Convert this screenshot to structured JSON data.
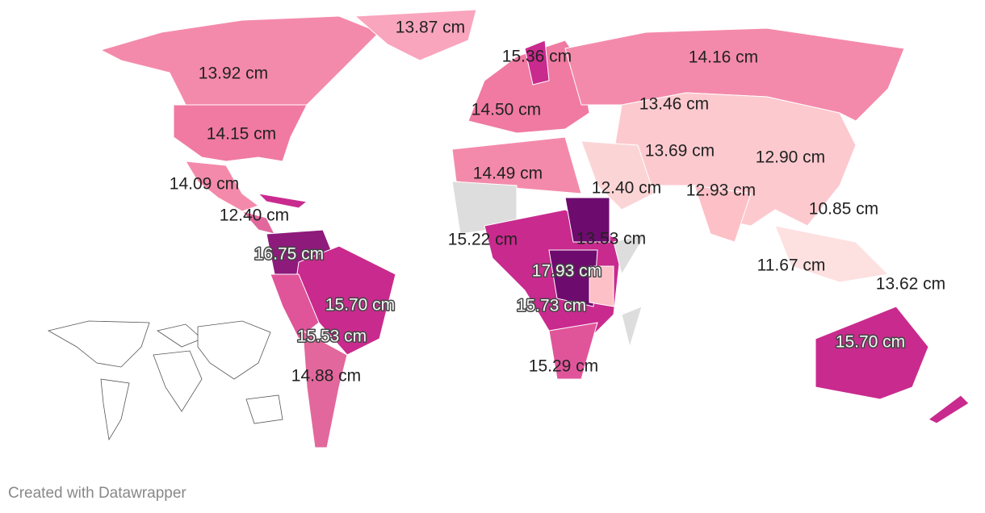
{
  "map": {
    "labels": [
      "13.87 cm",
      "15.36 cm",
      "14.16 cm",
      "13.92 cm",
      "13.46 cm",
      "14.50 cm",
      "14.15 cm",
      "13.69 cm",
      "12.90 cm",
      "14.49 cm",
      "14.09 cm",
      "12.40 cm",
      "12.93 cm",
      "10.85 cm",
      "12.40 cm",
      "15.22 cm",
      "13.53 cm",
      "16.75 cm",
      "17.93 cm",
      "11.67 cm",
      "13.62 cm",
      "15.70 cm",
      "15.73 cm",
      "15.53 cm",
      "15.70 cm",
      "14.88 cm",
      "15.29 cm"
    ],
    "footer": "Created with Datawrapper"
  }
}
